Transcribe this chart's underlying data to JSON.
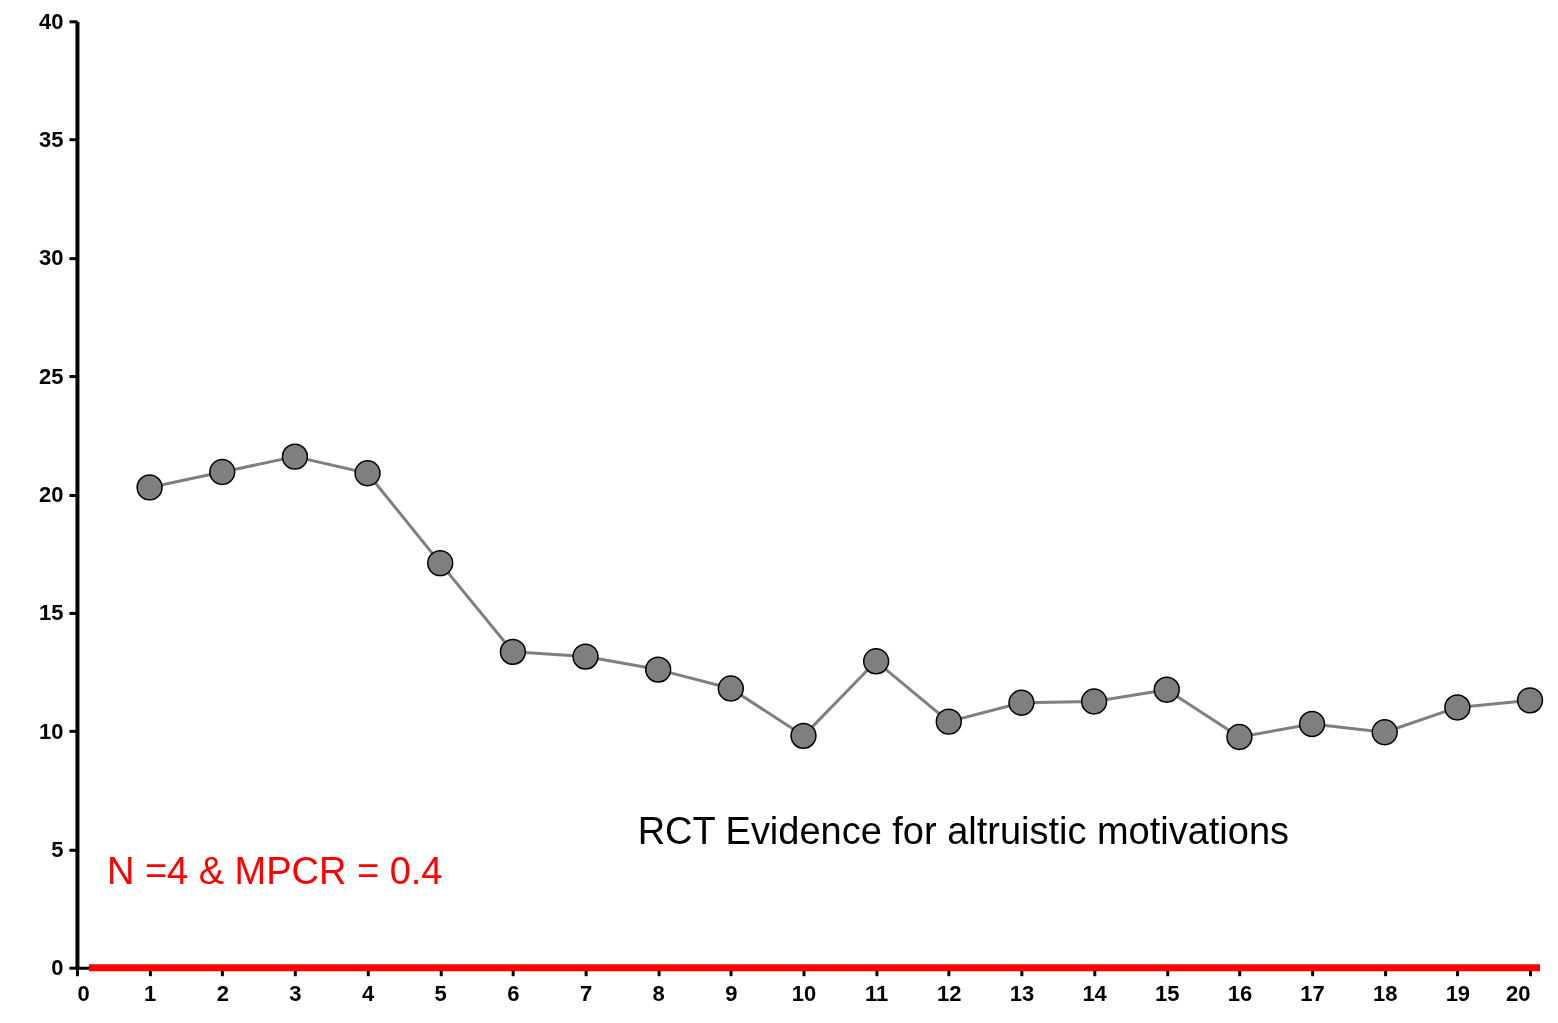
{
  "chart_data": {
    "type": "line",
    "x": [
      1,
      2,
      3,
      4,
      5,
      6,
      7,
      8,
      9,
      10,
      11,
      12,
      13,
      14,
      15,
      16,
      17,
      18,
      19,
      20
    ],
    "series": [
      {
        "color": "#7f7f7f",
        "values": [
          20.3,
          20.95,
          21.6,
          20.9,
          17.1,
          13.35,
          13.15,
          12.6,
          11.8,
          9.8,
          12.95,
          10.4,
          11.2,
          11.25,
          11.75,
          9.75,
          10.3,
          9.95,
          11.0,
          11.3
        ]
      }
    ],
    "xlim": [
      0,
      20
    ],
    "xticks": [
      0,
      1,
      2,
      3,
      4,
      5,
      6,
      7,
      8,
      9,
      10,
      11,
      12,
      13,
      14,
      15,
      16,
      17,
      18,
      19,
      20
    ],
    "ylim": [
      0,
      40
    ],
    "yticks": [
      0,
      5,
      10,
      15,
      20,
      25,
      30,
      35,
      40
    ],
    "ref_lines": [
      {
        "axis": "y",
        "value": 0,
        "color": "#ff0000"
      }
    ],
    "annotations": [
      "N =4 & MPCR = 0.4",
      "RCT Evidence for altruistic motivations"
    ],
    "marker": "circle",
    "line_style": "solid",
    "grid": false
  }
}
